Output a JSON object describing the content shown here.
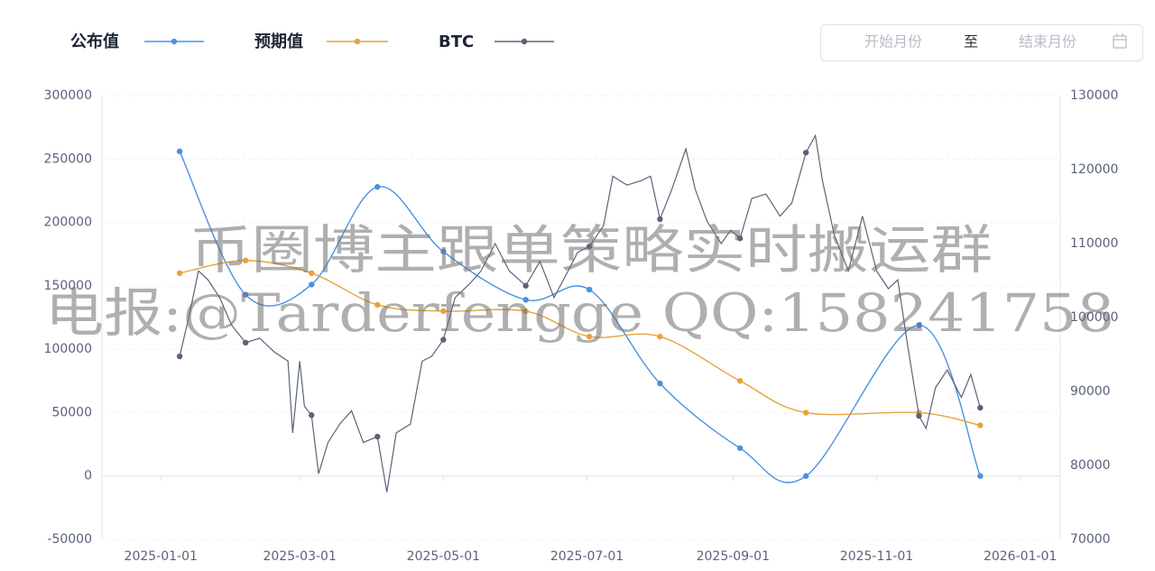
{
  "chart_data": {
    "type": "line",
    "x": [
      "2025-01-09",
      "2025-02-06",
      "2025-03-06",
      "2025-04-03",
      "2025-05-01",
      "2025-06-05",
      "2025-07-02",
      "2025-08-01",
      "2025-09-04",
      "2025-10-02",
      "2025-11-19",
      "2025-12-15"
    ],
    "series": [
      {
        "name": "公布值",
        "color": "#4a90e2",
        "values": [
          256000,
          143000,
          151000,
          228000,
          177000,
          139000,
          147000,
          73000,
          22000,
          0,
          119000,
          0
        ]
      },
      {
        "name": "预期值",
        "color": "#e8a23a",
        "values": [
          160000,
          170000,
          160000,
          135000,
          130000,
          130000,
          110000,
          110000,
          75000,
          50000,
          50000,
          40000
        ]
      },
      {
        "name": "BTC",
        "color": "#5a6378",
        "axis": "y2",
        "x": [
          "2025-01-09",
          "2025-01-13",
          "2025-01-17",
          "2025-01-21",
          "2025-01-26",
          "2025-01-31",
          "2025-02-06",
          "2025-02-12",
          "2025-02-18",
          "2025-02-24",
          "2025-02-26",
          "2025-03-01",
          "2025-03-03",
          "2025-03-06",
          "2025-03-09",
          "2025-03-13",
          "2025-03-18",
          "2025-03-23",
          "2025-03-28",
          "2025-04-03",
          "2025-04-07",
          "2025-04-11",
          "2025-04-17",
          "2025-04-22",
          "2025-04-26",
          "2025-05-01",
          "2025-05-06",
          "2025-05-12",
          "2025-05-17",
          "2025-05-23",
          "2025-05-29",
          "2025-06-05",
          "2025-06-11",
          "2025-06-17",
          "2025-06-23",
          "2025-06-27",
          "2025-07-02",
          "2025-07-08",
          "2025-07-12",
          "2025-07-18",
          "2025-07-24",
          "2025-07-28",
          "2025-08-01",
          "2025-08-06",
          "2025-08-12",
          "2025-08-16",
          "2025-08-21",
          "2025-08-27",
          "2025-08-31",
          "2025-09-04",
          "2025-09-09",
          "2025-09-15",
          "2025-09-21",
          "2025-09-26",
          "2025-10-02",
          "2025-10-06",
          "2025-10-09",
          "2025-10-14",
          "2025-10-20",
          "2025-10-26",
          "2025-11-01",
          "2025-11-06",
          "2025-11-10",
          "2025-11-14",
          "2025-11-19",
          "2025-11-22",
          "2025-11-26",
          "2025-12-01",
          "2025-12-07",
          "2025-12-11",
          "2025-12-15"
        ],
        "values": [
          94750,
          100200,
          106300,
          105100,
          102700,
          99000,
          96600,
          97200,
          95400,
          94100,
          84400,
          94100,
          88000,
          86800,
          78900,
          83100,
          85600,
          87400,
          83100,
          83900,
          76400,
          84400,
          85600,
          94100,
          94750,
          97000,
          102700,
          104500,
          106300,
          110000,
          106300,
          104300,
          107600,
          102700,
          106300,
          108800,
          109600,
          112400,
          119100,
          117900,
          118500,
          119100,
          113300,
          117300,
          122800,
          117300,
          113000,
          110000,
          111800,
          110700,
          116100,
          116700,
          113700,
          115500,
          122300,
          124600,
          118500,
          111200,
          106300,
          113700,
          106300,
          103900,
          105100,
          96600,
          86700,
          85000,
          90500,
          92900,
          89200,
          92300,
          87800
        ]
      }
    ],
    "xlim": [
      "2024-12-07",
      "2026-01-18"
    ],
    "xticks": [
      "2025-01-01",
      "2025-03-01",
      "2025-05-01",
      "2025-07-01",
      "2025-09-01",
      "2025-11-01",
      "2026-01-01"
    ],
    "ylim": [
      -50000,
      300000
    ],
    "yticks": [
      -50000,
      0,
      50000,
      100000,
      150000,
      200000,
      250000,
      300000
    ],
    "y2lim": [
      70000,
      130000
    ],
    "y2ticks": [
      70000,
      80000,
      90000,
      100000,
      110000,
      120000,
      130000
    ],
    "grid": true,
    "smooth": true,
    "legend": "top-left"
  },
  "date_picker": {
    "start": "开始月份",
    "separator": "至",
    "end": "结束月份"
  },
  "watermark": [
    "币圈博主跟单策略实时搬运群",
    "电报:@Tarderfengge QQ:158241758"
  ]
}
